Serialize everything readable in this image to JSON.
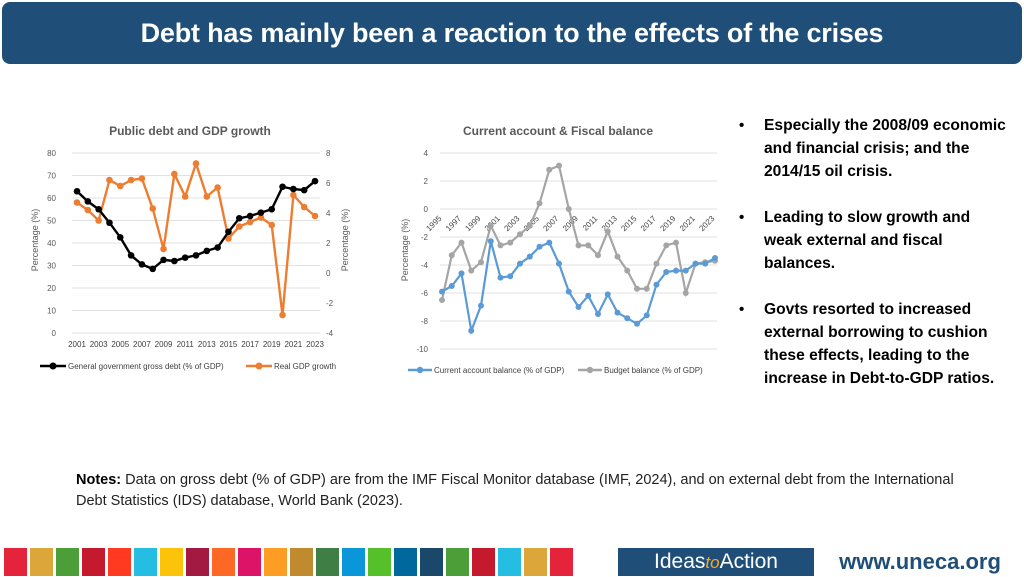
{
  "title": "Debt has mainly been a reaction to the effects of the crises",
  "colors": {
    "title_bar": "#1f4e79",
    "debt": "#000000",
    "gdp": "#ed7d31",
    "current": "#5b9bd5",
    "budget": "#a5a5a5",
    "grid": "#d9d9d9"
  },
  "chart_data": [
    {
      "type": "line",
      "title": "Public debt and GDP growth",
      "x": [
        2001,
        2002,
        2003,
        2004,
        2005,
        2006,
        2007,
        2008,
        2009,
        2010,
        2011,
        2012,
        2013,
        2014,
        2015,
        2016,
        2017,
        2018,
        2019,
        2020,
        2021,
        2022,
        2023
      ],
      "x_tick_labels": [
        "2001",
        "2003",
        "2005",
        "2007",
        "2009",
        "2011",
        "2013",
        "2015",
        "2017",
        "2019",
        "2021",
        "2023"
      ],
      "ylabel": "Percentage (%)",
      "y2label": "Percentage (%)",
      "ylim": [
        0,
        80
      ],
      "y_ticks": [
        "80",
        "70",
        "60",
        "50",
        "40",
        "30",
        "20",
        "10",
        "0"
      ],
      "y2lim": [
        -4,
        8
      ],
      "y2_ticks": [
        "8",
        "6",
        "4",
        "2",
        "0",
        "-2",
        "-4"
      ],
      "series": [
        {
          "name": "General government gross debt (% of GDP)",
          "axis": "left",
          "values": [
            63,
            58.5,
            55,
            49,
            42.5,
            34.5,
            30.5,
            28.5,
            32.5,
            32,
            33.5,
            34.5,
            36.5,
            38,
            45,
            51,
            52,
            53.5,
            55,
            65,
            64,
            63.5,
            67.5
          ]
        },
        {
          "name": "Real GDP growth",
          "axis": "right",
          "values": [
            4.7,
            4.2,
            3.5,
            6.2,
            5.8,
            6.2,
            6.3,
            4.3,
            1.6,
            6.6,
            5.1,
            7.3,
            5.1,
            5.7,
            2.3,
            3.1,
            3.4,
            3.7,
            3.2,
            -2.8,
            5.2,
            4.4,
            3.8
          ]
        }
      ]
    },
    {
      "type": "line",
      "title": "Current account & Fiscal balance",
      "x": [
        1995,
        1996,
        1997,
        1998,
        1999,
        2000,
        2001,
        2002,
        2003,
        2004,
        2005,
        2006,
        2007,
        2008,
        2009,
        2010,
        2011,
        2012,
        2013,
        2014,
        2015,
        2016,
        2017,
        2018,
        2019,
        2020,
        2021,
        2022,
        2023
      ],
      "x_tick_labels": [
        "1995",
        "1997",
        "1999",
        "2001",
        "2003",
        "2005",
        "2007",
        "2009",
        "2011",
        "2013",
        "2015",
        "2017",
        "2019",
        "2021",
        "2023"
      ],
      "ylabel": "Percentage (%)",
      "ylim": [
        -10,
        4
      ],
      "y_ticks": [
        "4",
        "2",
        "0",
        "-2",
        "-4",
        "-6",
        "-8",
        "-10"
      ],
      "series": [
        {
          "name": "Current account balance (% of GDP)",
          "values": [
            -5.9,
            -5.5,
            -4.6,
            -8.7,
            -6.9,
            -2.3,
            -4.9,
            -4.8,
            -3.9,
            -3.4,
            -2.7,
            -2.4,
            -3.9,
            -5.9,
            -7,
            -6.2,
            -7.5,
            -6.1,
            -7.4,
            -7.8,
            -8.2,
            -7.6,
            -5.4,
            -4.5,
            -4.4,
            -4.4,
            -3.9,
            -3.9,
            -3.5
          ]
        },
        {
          "name": "Budget balance (% of GDP)",
          "values": [
            -6.5,
            -3.3,
            -2.4,
            -4.4,
            -3.8,
            -1.2,
            -2.6,
            -2.4,
            -1.8,
            -1.2,
            0.4,
            2.8,
            3.1,
            0,
            -2.6,
            -2.6,
            -3.3,
            -1.6,
            -3.4,
            -4.4,
            -5.7,
            -5.7,
            -3.9,
            -2.6,
            -2.4,
            -6,
            -3.9,
            -3.8,
            -3.7
          ]
        }
      ]
    }
  ],
  "bullets": [
    "Especially the 2008/09 economic and financial crisis; and the 2014/15 oil crisis.",
    "Leading to slow growth and weak external and fiscal balances.",
    "Govts resorted to increased external borrowing to cushion these effects, leading to the increase in Debt-to-GDP ratios."
  ],
  "bullet_symbol": "•",
  "notes": {
    "label": "Notes: ",
    "text": "Data on gross debt (% of GDP) are from the IMF Fiscal Monitor database (IMF, 2024), and on external debt from the International Debt Statistics (IDS) database, World Bank (2023)."
  },
  "footer": {
    "sdg_colors": [
      "#e5243b",
      "#dda63a",
      "#4c9f38",
      "#c5192d",
      "#ff3a21",
      "#26bde2",
      "#fcc30b",
      "#a21942",
      "#fd6925",
      "#dd1367",
      "#fd9d24",
      "#bf8b2e",
      "#3f7e44",
      "#0a97d9",
      "#56c02b",
      "#00689d",
      "#19486a",
      "#4c9f38",
      "#c5192d",
      "#26bde2",
      "#dda63a",
      "#e5243b"
    ],
    "brand_left": "Ideas",
    "brand_to": "to",
    "brand_right": "Action",
    "url": "www.uneca.org"
  }
}
